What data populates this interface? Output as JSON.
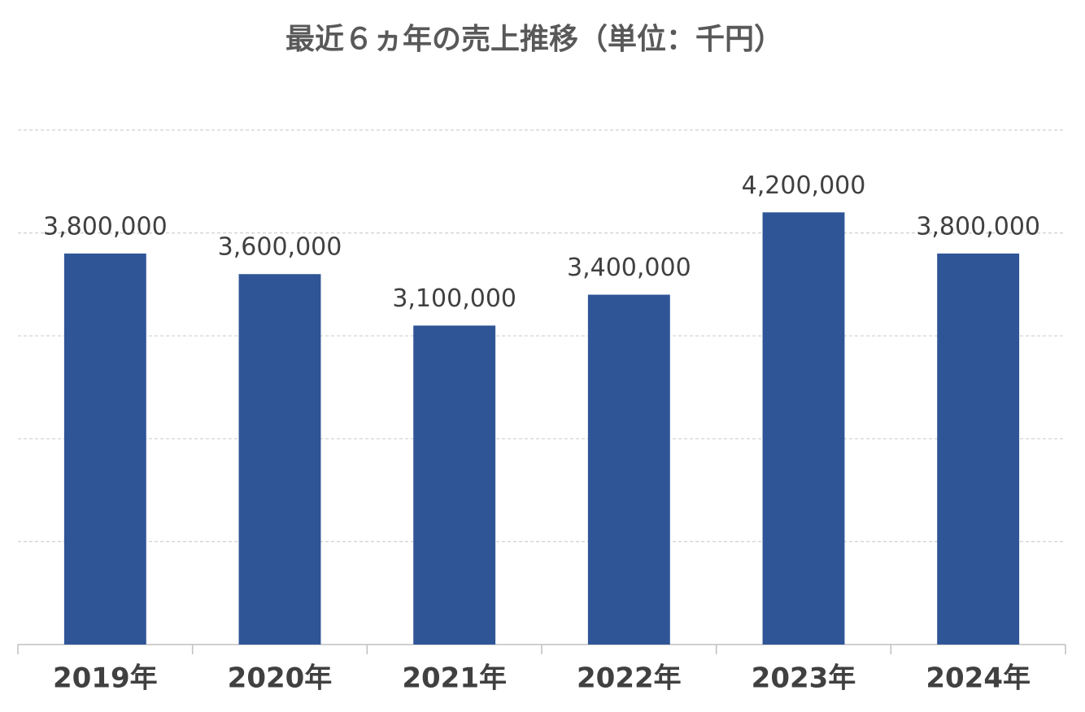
{
  "chart_data": {
    "type": "bar",
    "title": "最近６ヵ年の売上推移（単位：千円）",
    "categories": [
      "2019年",
      "2020年",
      "2021年",
      "2022年",
      "2023年",
      "2024年"
    ],
    "values": [
      3800000,
      3600000,
      3100000,
      3400000,
      4200000,
      3800000
    ],
    "value_labels": [
      "3,800,000",
      "3,600,000",
      "3,100,000",
      "3,400,000",
      "4,200,000",
      "3,800,000"
    ],
    "color": "#2f5597",
    "ylim": [
      0,
      5000000
    ],
    "yticks": [
      0,
      1000000,
      2000000,
      3000000,
      4000000,
      5000000
    ],
    "grid": true
  }
}
